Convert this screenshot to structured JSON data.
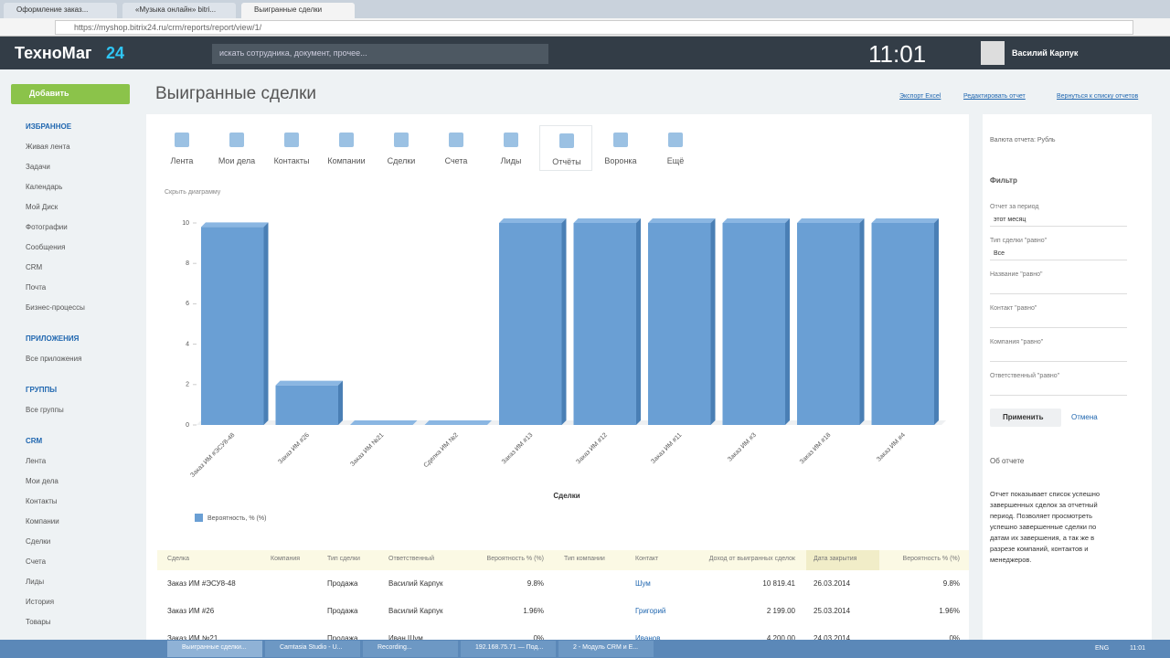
{
  "browser": {
    "tabs": [
      "Оформление заказ...",
      "«Музыка онлайн» bitri...",
      "Выигранные сделки"
    ],
    "url": "https://myshop.bitrix24.ru/crm/reports/report/view/1/"
  },
  "header": {
    "logo": "ТехноМаг",
    "logo_num": "24",
    "search": "искать сотрудника, документ, прочее...",
    "time": "11:01",
    "user": "Василий Карпук"
  },
  "sidebar": {
    "add_button": "Добавить",
    "sections": [
      {
        "title": "ИЗБРАННОЕ",
        "items": [
          "Живая лента",
          "Задачи",
          "Календарь",
          "Мой Диск",
          "Фотографии",
          "Сообщения",
          "CRM",
          "Почта",
          "Бизнес-процессы"
        ]
      },
      {
        "title": "ПРИЛОЖЕНИЯ",
        "items": [
          "Все приложения"
        ]
      },
      {
        "title": "ГРУППЫ",
        "items": [
          "Все группы"
        ]
      },
      {
        "title": "CRM",
        "items": [
          "Лента",
          "Мои дела",
          "Контакты",
          "Компании",
          "Сделки",
          "Счета",
          "Лиды",
          "История",
          "Товары"
        ]
      }
    ]
  },
  "page": {
    "title": "Выигранные сделки",
    "links": [
      "Экспорт Excel",
      "Редактировать отчет",
      "Вернуться к списку отчетов"
    ],
    "chart_toggle": "Скрыть диаграмму"
  },
  "toolbar": [
    "Лента",
    "Мои дела",
    "Контакты",
    "Компании",
    "Сделки",
    "Счета",
    "Лиды",
    "Отчёты",
    "Воронка",
    "Ещё"
  ],
  "chart_data": {
    "type": "bar",
    "x_label": "Сделки",
    "categories": [
      "Заказ ИМ #ЭСУ8-48",
      "Заказ ИМ #26",
      "Заказ ИМ №21",
      "Сделка ИМ №2",
      "Заказ ИМ #13",
      "Заказ ИМ #12",
      "Заказ ИМ #11",
      "Заказ ИМ #3",
      "Заказ ИМ #18",
      "Заказ ИМ #4"
    ],
    "series": [
      {
        "name": "Вероятность, % (%)",
        "color": "#6a9fd4",
        "values": [
          9.8,
          1.96,
          0,
          0,
          10,
          10,
          10,
          10,
          10,
          10
        ]
      }
    ],
    "ylim": [
      0,
      10
    ],
    "yticks": [
      0,
      2,
      4,
      6,
      8,
      10
    ],
    "grid": false
  },
  "table": {
    "columns": [
      "Сделка",
      "Компания",
      "Тип сделки",
      "Ответственный",
      "Вероятность % (%)",
      "Тип компании",
      "Контакт",
      "Доход от выигранных сделок",
      "Дата закрытия",
      "Вероятность % (%)"
    ],
    "rows": [
      [
        "Заказ ИМ #ЭСУ8-48",
        null,
        "Продажа",
        "Василий Карпук",
        "9.8%",
        null,
        "Шум",
        "10 819.41",
        "26.03.2014",
        "9.8%"
      ],
      [
        "Заказ ИМ #26",
        null,
        "Продажа",
        "Василий Карпук",
        "1.96%",
        null,
        "Григорий",
        "2 199.00",
        "25.03.2014",
        "1.96%"
      ],
      [
        "Заказ ИМ №21",
        null,
        "Продажа",
        "Иван Шум",
        "0%",
        null,
        "Иванов",
        "4 200.00",
        "24.03.2014",
        "0%"
      ]
    ]
  },
  "right_panel": {
    "currency": "Валюта отчета: Рубль",
    "filter_title": "Фильтр",
    "fields": [
      {
        "label": "Отчет за период",
        "value": "этот месяц"
      },
      {
        "label": "Тип сделки \"равно\"",
        "value": "Все"
      },
      {
        "label": "Название \"равно\""
      },
      {
        "label": "Контакт \"равно\""
      },
      {
        "label": "Компания \"равно\""
      },
      {
        "label": "Ответственный \"равно\""
      }
    ],
    "apply": "Применить",
    "cancel": "Отмена",
    "about_title": "Об отчете",
    "about_text": "Отчет показывает список успешно завершенных сделок за отчетный период. Позволяет просмотреть успешно завершенные сделки по датам их завершения, а так же в разрезе компаний, контактов и менеджеров."
  },
  "taskbar": {
    "items": [
      "Выигранные сделки...",
      "Camtasia Studio - U...",
      "Recording...",
      "192.168.75.71 — Под...",
      "2 - Модуль CRM и Е..."
    ],
    "lang": "ENG",
    "clock": "11:01"
  }
}
